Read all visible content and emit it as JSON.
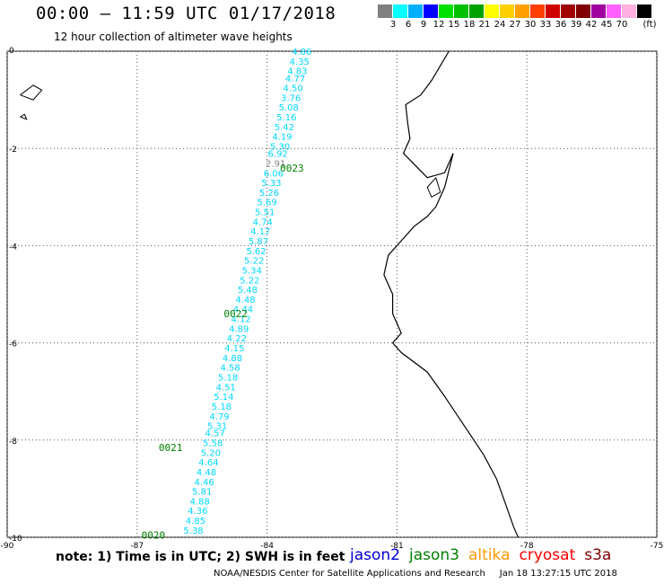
{
  "header": {
    "title": "00:00 – 11:59 UTC 01/17/2018",
    "subtitle": "12 hour collection of altimeter wave heights"
  },
  "legend": {
    "unit": "(ft)",
    "colors": [
      "#808080",
      "#00ffff",
      "#00b0ff",
      "#0000ff",
      "#00e000",
      "#00c000",
      "#00a000",
      "#ffff00",
      "#ffd000",
      "#ffa000",
      "#ff4000",
      "#d00000",
      "#a00000",
      "#800000",
      "#a000a0",
      "#ff60ff",
      "#ffb0e0",
      "#000000"
    ],
    "labels": [
      "3",
      "6",
      "9",
      "12",
      "15",
      "18",
      "21",
      "24",
      "27",
      "30",
      "33",
      "36",
      "39",
      "42",
      "45",
      "70"
    ]
  },
  "map": {
    "xlim": [
      -90,
      -75
    ],
    "ylim": [
      -10,
      0
    ],
    "x_ticks": [
      "-90",
      "-87",
      "-84",
      "-81",
      "-78",
      "-75"
    ],
    "y_ticks": [
      "0",
      "-2",
      "-4",
      "-6",
      "-8",
      "-10"
    ],
    "gridlines": true
  },
  "chart_data": {
    "type": "scatter",
    "series_color": "#00d8ff",
    "track_labels": [
      {
        "text": "0023",
        "lon": -83.7,
        "lat": -2.4,
        "color": "#008000"
      },
      {
        "text": "0022",
        "lon": -85.0,
        "lat": -5.4,
        "color": "#008000"
      },
      {
        "text": "0021",
        "lon": -86.5,
        "lat": -8.15,
        "color": "#008000"
      },
      {
        "text": "0020",
        "lon": -86.9,
        "lat": -9.95,
        "color": "#008000"
      }
    ],
    "points": [
      {
        "lon": -83.2,
        "lat": 0.0,
        "v": "4.86"
      },
      {
        "lon": -83.25,
        "lat": -0.2,
        "v": "4.35"
      },
      {
        "lon": -83.3,
        "lat": -0.4,
        "v": "4.83"
      },
      {
        "lon": -83.35,
        "lat": -0.55,
        "v": "4.77"
      },
      {
        "lon": -83.4,
        "lat": -0.75,
        "v": "4.50"
      },
      {
        "lon": -83.45,
        "lat": -0.95,
        "v": "3.76"
      },
      {
        "lon": -83.5,
        "lat": -1.15,
        "v": "5.08"
      },
      {
        "lon": -83.55,
        "lat": -1.35,
        "v": "5.16"
      },
      {
        "lon": -83.6,
        "lat": -1.55,
        "v": "5.42"
      },
      {
        "lon": -83.65,
        "lat": -1.75,
        "v": "4.19"
      },
      {
        "lon": -83.7,
        "lat": -1.95,
        "v": "5.30"
      },
      {
        "lon": -83.75,
        "lat": -2.1,
        "v": "6.92"
      },
      {
        "lon": -83.8,
        "lat": -2.3,
        "v": "2.91",
        "color": "#808080"
      },
      {
        "lon": -83.85,
        "lat": -2.5,
        "v": "6.06"
      },
      {
        "lon": -83.9,
        "lat": -2.7,
        "v": "5.33"
      },
      {
        "lon": -83.95,
        "lat": -2.9,
        "v": "5.26"
      },
      {
        "lon": -84.0,
        "lat": -3.1,
        "v": "5.69"
      },
      {
        "lon": -84.05,
        "lat": -3.3,
        "v": "5.51"
      },
      {
        "lon": -84.1,
        "lat": -3.5,
        "v": "4.74"
      },
      {
        "lon": -84.15,
        "lat": -3.7,
        "v": "4.17"
      },
      {
        "lon": -84.2,
        "lat": -3.9,
        "v": "5.87"
      },
      {
        "lon": -84.25,
        "lat": -4.1,
        "v": "5.62"
      },
      {
        "lon": -84.3,
        "lat": -4.3,
        "v": "5.22"
      },
      {
        "lon": -84.35,
        "lat": -4.5,
        "v": "5.34"
      },
      {
        "lon": -84.4,
        "lat": -4.7,
        "v": "5.22"
      },
      {
        "lon": -84.45,
        "lat": -4.9,
        "v": "5.48"
      },
      {
        "lon": -84.5,
        "lat": -5.1,
        "v": "4.48"
      },
      {
        "lon": -84.55,
        "lat": -5.3,
        "v": "4.44"
      },
      {
        "lon": -84.6,
        "lat": -5.5,
        "v": "4.12"
      },
      {
        "lon": -84.65,
        "lat": -5.7,
        "v": "4.89"
      },
      {
        "lon": -84.7,
        "lat": -5.9,
        "v": "4.22"
      },
      {
        "lon": -84.75,
        "lat": -6.1,
        "v": "4.15"
      },
      {
        "lon": -84.8,
        "lat": -6.3,
        "v": "4.88"
      },
      {
        "lon": -84.85,
        "lat": -6.5,
        "v": "4.58"
      },
      {
        "lon": -84.9,
        "lat": -6.7,
        "v": "5.18"
      },
      {
        "lon": -84.95,
        "lat": -6.9,
        "v": "4.51"
      },
      {
        "lon": -85.0,
        "lat": -7.1,
        "v": "5.14"
      },
      {
        "lon": -85.05,
        "lat": -7.3,
        "v": "5.18"
      },
      {
        "lon": -85.1,
        "lat": -7.5,
        "v": "4.79"
      },
      {
        "lon": -85.15,
        "lat": -7.7,
        "v": "5.31"
      },
      {
        "lon": -85.2,
        "lat": -7.85,
        "v": "4.57"
      },
      {
        "lon": -85.25,
        "lat": -8.05,
        "v": "5.58"
      },
      {
        "lon": -85.3,
        "lat": -8.25,
        "v": "5.20"
      },
      {
        "lon": -85.35,
        "lat": -8.45,
        "v": "4.64"
      },
      {
        "lon": -85.4,
        "lat": -8.65,
        "v": "4.48"
      },
      {
        "lon": -85.45,
        "lat": -8.85,
        "v": "4.46"
      },
      {
        "lon": -85.5,
        "lat": -9.05,
        "v": "5.81"
      },
      {
        "lon": -85.55,
        "lat": -9.25,
        "v": "4.88"
      },
      {
        "lon": -85.6,
        "lat": -9.45,
        "v": "4.36"
      },
      {
        "lon": -85.65,
        "lat": -9.65,
        "v": "4.85"
      },
      {
        "lon": -85.7,
        "lat": -9.85,
        "v": "5.38"
      }
    ]
  },
  "footer": {
    "note": "note: 1) Time is in UTC; 2) SWH is in feet",
    "missions": [
      {
        "name": "jason2",
        "color": "#0000d0"
      },
      {
        "name": "jason3",
        "color": "#008000"
      },
      {
        "name": "altika",
        "color": "#ff9900"
      },
      {
        "name": "cryosat",
        "color": "#ff0000"
      },
      {
        "name": "s3a",
        "color": "#800000"
      }
    ],
    "credit": "NOAA/NESDIS Center for Satellite Applications and Research",
    "timestamp": "Jan 18 13:27:15 UTC 2018"
  }
}
